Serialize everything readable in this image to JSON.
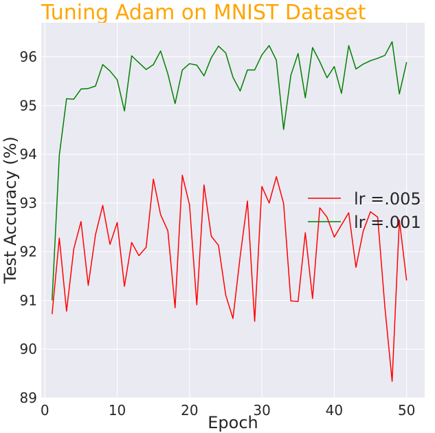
{
  "chart_data": {
    "type": "line",
    "title": "Tuning Adam on MNIST Dataset",
    "title_color": "#FFA500",
    "xlabel": "Epoch",
    "ylabel": "Test Accuracy (%)",
    "xlim": [
      -0.5,
      52.5
    ],
    "ylim": [
      89,
      96.7
    ],
    "xticks": [
      0,
      10,
      20,
      30,
      40,
      50
    ],
    "yticks": [
      89,
      90,
      91,
      92,
      93,
      94,
      95,
      96
    ],
    "grid": true,
    "background": "#EAEAF2",
    "legend_position": "center-right",
    "x": [
      1,
      2,
      3,
      4,
      5,
      6,
      7,
      8,
      9,
      10,
      11,
      12,
      13,
      14,
      15,
      16,
      17,
      18,
      19,
      20,
      21,
      22,
      23,
      24,
      25,
      26,
      27,
      28,
      29,
      30,
      31,
      32,
      33,
      34,
      35,
      36,
      37,
      38,
      39,
      40,
      41,
      42,
      43,
      44,
      45,
      46,
      47,
      48,
      49,
      50
    ],
    "series": [
      {
        "name": "lr =.005",
        "color": "#FF0000",
        "values": [
          90.72,
          92.28,
          90.78,
          92.06,
          92.62,
          91.31,
          92.35,
          92.95,
          92.15,
          92.6,
          91.29,
          92.19,
          91.92,
          92.09,
          93.49,
          92.76,
          92.43,
          90.85,
          93.57,
          92.96,
          90.91,
          93.37,
          92.32,
          92.13,
          91.11,
          90.63,
          91.91,
          93.04,
          90.57,
          93.34,
          93.0,
          93.54,
          92.99,
          90.99,
          90.98,
          92.39,
          91.04,
          92.9,
          92.71,
          92.3,
          92.55,
          92.8,
          91.68,
          92.42,
          92.82,
          92.71,
          90.86,
          89.34,
          92.65,
          91.41
        ]
      },
      {
        "name": "lr =.001",
        "color": "#008000",
        "values": [
          91.0,
          93.98,
          95.14,
          95.13,
          95.34,
          95.35,
          95.4,
          95.84,
          95.71,
          95.53,
          94.89,
          96.02,
          95.88,
          95.74,
          95.84,
          96.12,
          95.65,
          95.04,
          95.73,
          95.86,
          95.83,
          95.61,
          95.98,
          96.22,
          96.08,
          95.58,
          95.3,
          95.73,
          95.73,
          96.04,
          96.23,
          95.93,
          94.51,
          95.62,
          96.07,
          95.16,
          96.19,
          95.9,
          95.57,
          95.8,
          95.25,
          96.23,
          95.75,
          95.85,
          95.92,
          95.97,
          96.03,
          96.31,
          95.24,
          95.89
        ]
      }
    ]
  }
}
